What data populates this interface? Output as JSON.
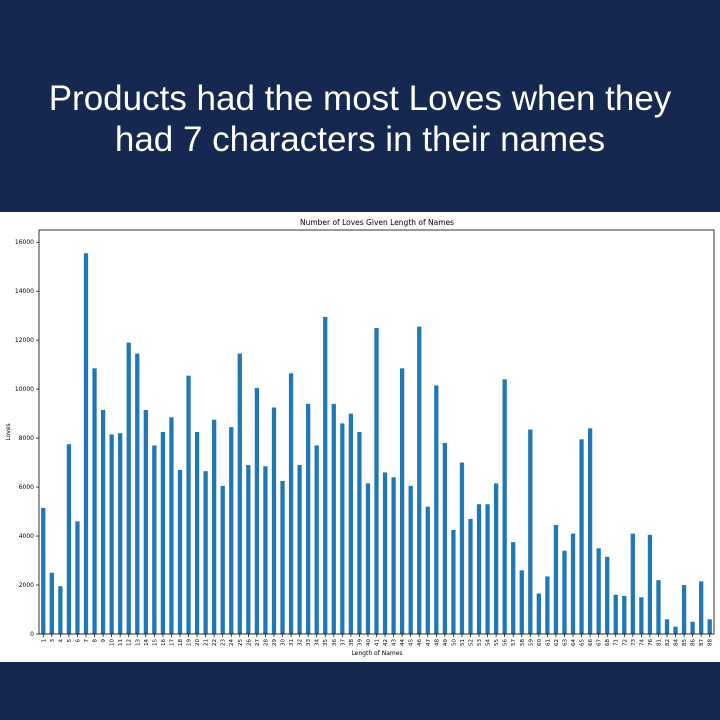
{
  "slide": {
    "headline": "Products had the most Loves when they had 7 characters in their names",
    "colors": {
      "background": "#142850",
      "bar": "#1f77b4",
      "panel": "#ffffff"
    }
  },
  "chart_data": {
    "type": "bar",
    "title": "Number of Loves Given Length of Names",
    "xlabel": "Length of Names",
    "ylabel": "Loves",
    "ylim": [
      0,
      16500
    ],
    "yticks": [
      0,
      2000,
      4000,
      6000,
      8000,
      10000,
      12000,
      14000,
      16000
    ],
    "grid": false,
    "legend": "none",
    "categories": [
      "1",
      "3",
      "4",
      "5",
      "6",
      "7",
      "8",
      "9",
      "10",
      "11",
      "12",
      "13",
      "14",
      "15",
      "16",
      "17",
      "18",
      "19",
      "20",
      "21",
      "22",
      "23",
      "24",
      "25",
      "26",
      "27",
      "28",
      "29",
      "30",
      "31",
      "32",
      "33",
      "34",
      "35",
      "36",
      "37",
      "38",
      "39",
      "40",
      "41",
      "42",
      "43",
      "44",
      "45",
      "46",
      "47",
      "48",
      "49",
      "50",
      "51",
      "52",
      "53",
      "54",
      "55",
      "56",
      "57",
      "58",
      "59",
      "60",
      "61",
      "62",
      "63",
      "64",
      "65",
      "66",
      "67",
      "68",
      "71",
      "72",
      "73",
      "74",
      "76",
      "81",
      "82",
      "84",
      "85",
      "86",
      "87",
      "88"
    ],
    "values": [
      5150,
      2500,
      1950,
      7750,
      4600,
      15550,
      10850,
      9150,
      8150,
      8200,
      11900,
      11450,
      9150,
      7700,
      8250,
      8850,
      6700,
      10550,
      8250,
      6650,
      8750,
      6050,
      8450,
      11450,
      6900,
      10050,
      6850,
      9250,
      6250,
      10650,
      6900,
      9400,
      7700,
      12950,
      9400,
      8600,
      9000,
      8250,
      6150,
      12500,
      6600,
      6400,
      10850,
      6050,
      12550,
      5200,
      10150,
      7800,
      4250,
      7000,
      4700,
      5300,
      5300,
      6150,
      10400,
      3750,
      2600,
      8350,
      1650,
      2350,
      4450,
      3400,
      4100,
      7950,
      8400,
      3500,
      3150,
      1600,
      1550,
      4100,
      1500,
      4050,
      2200,
      600,
      300,
      2000,
      500,
      2150,
      600
    ]
  }
}
